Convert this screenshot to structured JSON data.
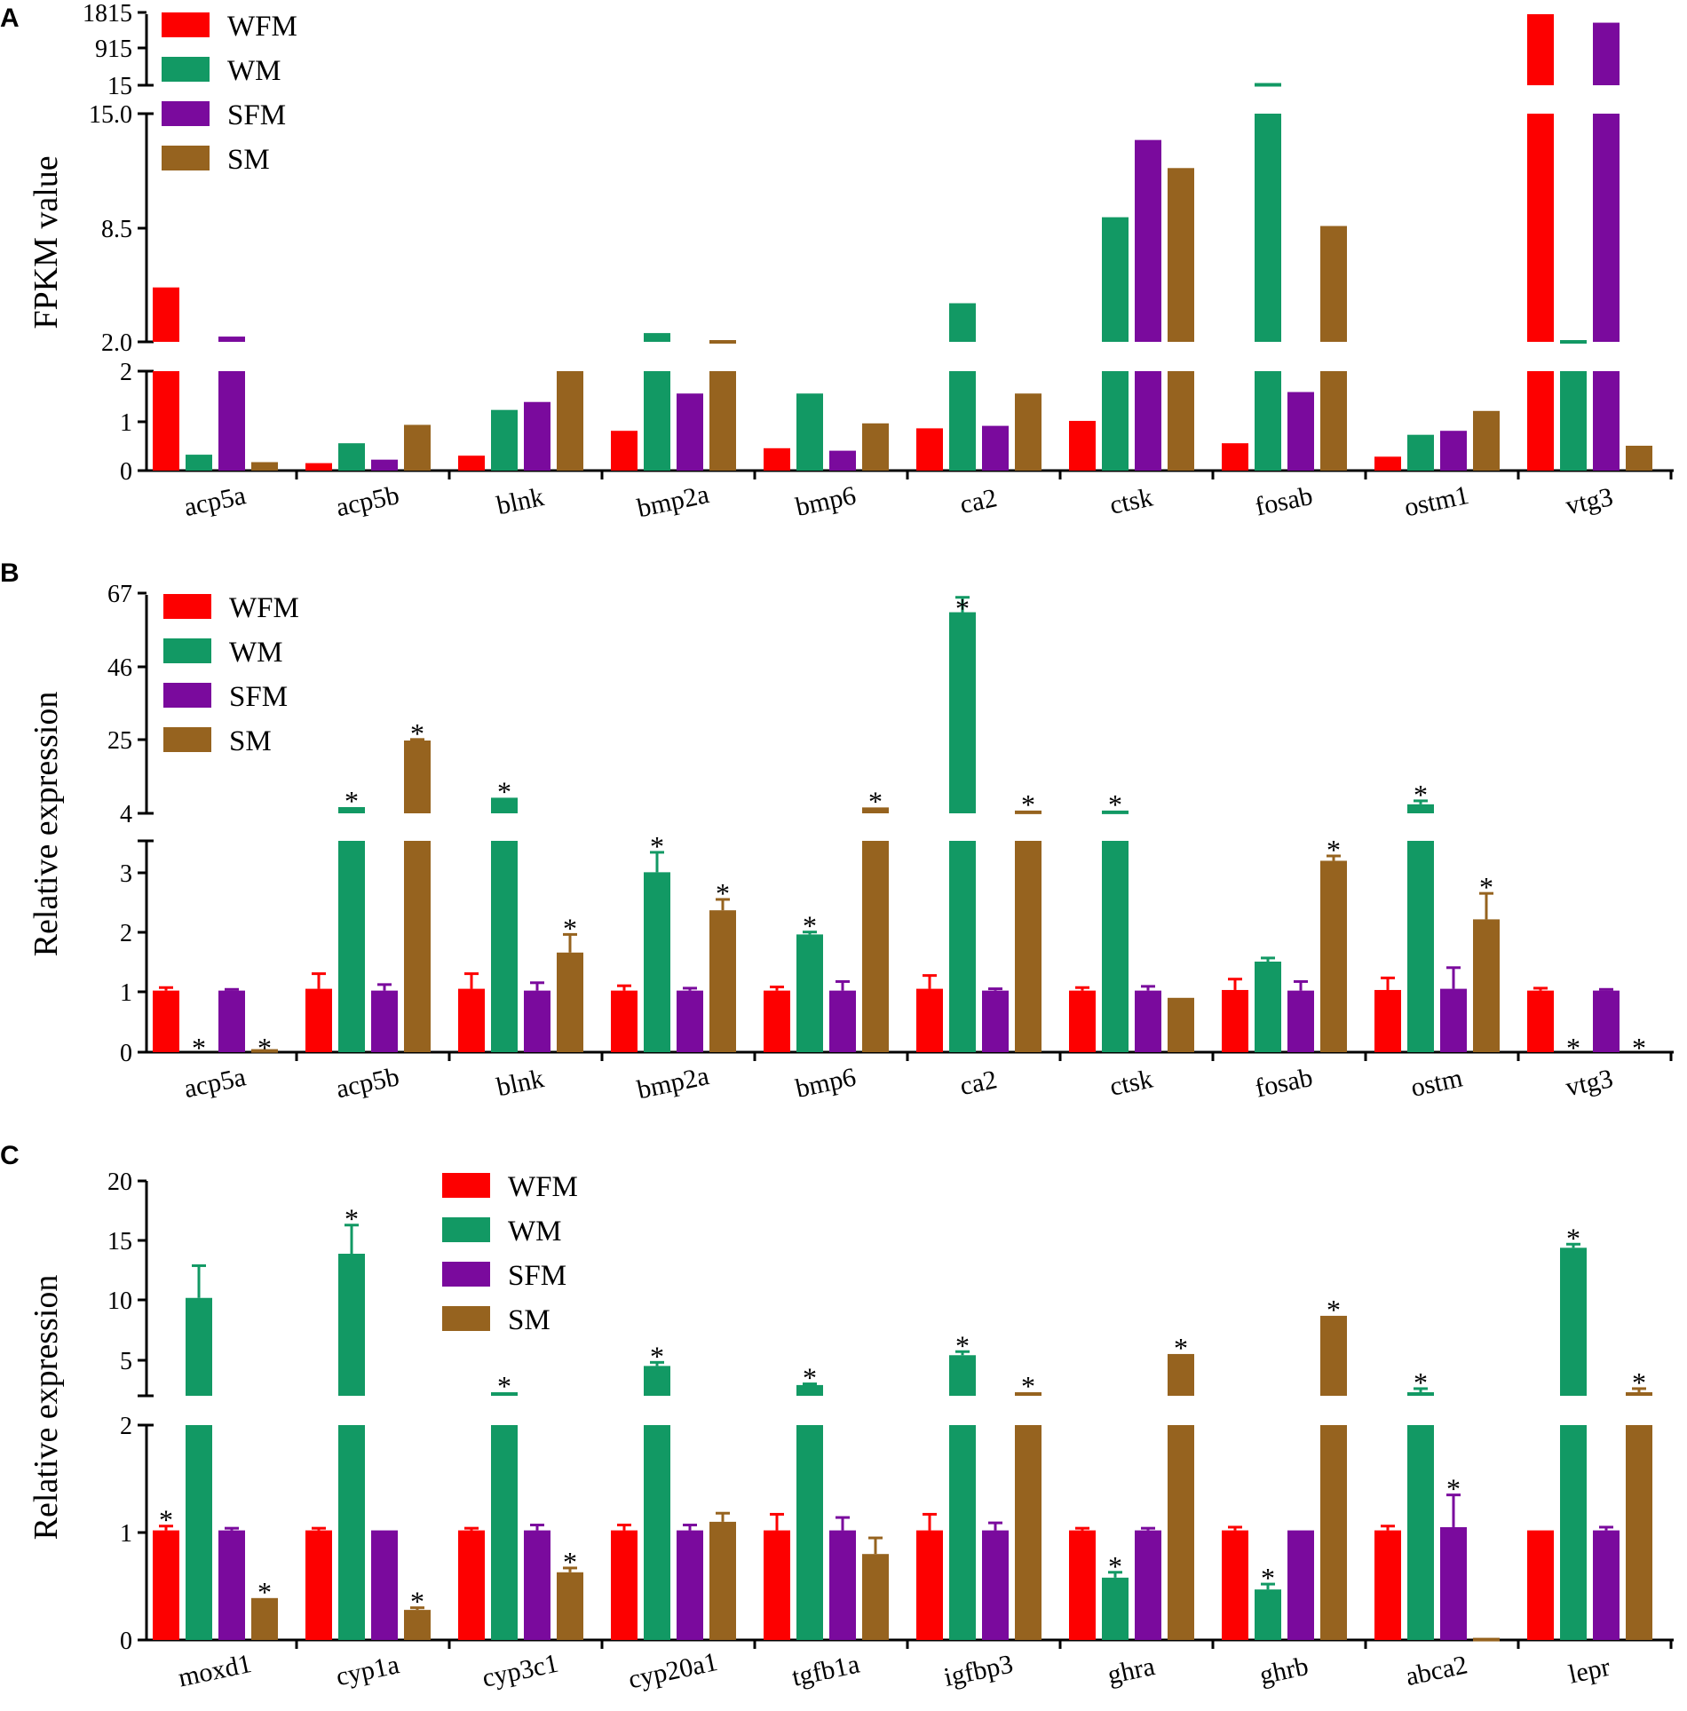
{
  "colors": {
    "WFM": "#fd0000",
    "WM": "#129964",
    "SFM": "#7a0a9d",
    "SM": "#96631f"
  },
  "chart_data": [
    {
      "type": "bar",
      "panel": "A",
      "ylabel": "FPKM value",
      "legend": [
        "WFM",
        "WM",
        "SFM",
        "SM"
      ],
      "categories": [
        "acp5a",
        "acp5b",
        "blnk",
        "bmp2a",
        "bmp6",
        "ca2",
        "ctsk",
        "fosab",
        "ostm1",
        "vtg3"
      ],
      "axis_breaks": [
        [
          0,
          2
        ],
        [
          2,
          15
        ],
        [
          15,
          1815
        ]
      ],
      "ticks": [
        [
          "0",
          "1",
          "2"
        ],
        [
          "2.0",
          "8.5",
          "15.0"
        ],
        [
          "15",
          "915",
          "1815"
        ]
      ],
      "series": [
        {
          "name": "WFM",
          "values": [
            5.1,
            0.15,
            0.3,
            0.8,
            0.45,
            0.85,
            1.0,
            0.55,
            0.28,
            1815
          ]
        },
        {
          "name": "WM",
          "values": [
            0.32,
            0.55,
            1.22,
            2.5,
            1.55,
            4.2,
            9.1,
            71,
            0.72,
            2.1
          ]
        },
        {
          "name": "SFM",
          "values": [
            2.3,
            0.22,
            1.38,
            1.55,
            0.4,
            0.9,
            13.5,
            1.58,
            0.8,
            1600
          ]
        },
        {
          "name": "SM",
          "values": [
            0.17,
            0.92,
            2.0,
            2.1,
            0.95,
            1.55,
            11.9,
            8.6,
            1.2,
            0.5
          ]
        }
      ],
      "significant": []
    },
    {
      "type": "bar",
      "panel": "B",
      "ylabel": "Relative expression",
      "legend": [
        "WFM",
        "WM",
        "SFM",
        "SM"
      ],
      "categories": [
        "acp5a",
        "acp5b",
        "blnk",
        "bmp2a",
        "bmp6",
        "ca2",
        "ctsk",
        "fosab",
        "ostm",
        "vtg3"
      ],
      "axis_breaks": [
        [
          0,
          3.5
        ],
        [
          4,
          67
        ]
      ],
      "ticks": [
        [
          "0",
          "1",
          "2",
          "3"
        ],
        [
          "4",
          "25",
          "46",
          "67"
        ]
      ],
      "series": [
        {
          "name": "WFM",
          "values": [
            1.02,
            1.05,
            1.05,
            1.02,
            1.02,
            1.05,
            1.02,
            1.03,
            1.03,
            1.02
          ],
          "errors": [
            0.05,
            0.25,
            0.25,
            0.08,
            0.06,
            0.22,
            0.05,
            0.18,
            0.2,
            0.04
          ]
        },
        {
          "name": "WM",
          "values": [
            0,
            5.8,
            8.5,
            2.98,
            1.95,
            62,
            4.8,
            1.5,
            6.6,
            0
          ],
          "errors": [
            0,
            0,
            0,
            0.33,
            0.04,
            4.3,
            0,
            0.06,
            1.0,
            0
          ]
        },
        {
          "name": "SFM",
          "values": [
            1.02,
            1.02,
            1.02,
            1.02,
            1.02,
            1.02,
            1.02,
            1.02,
            1.05,
            1.02
          ],
          "errors": [
            0.02,
            0.1,
            0.13,
            0.04,
            0.15,
            0.03,
            0.07,
            0.15,
            0.35,
            0.02
          ]
        },
        {
          "name": "SM",
          "values": [
            0.05,
            25.0,
            1.65,
            2.35,
            5.7,
            4.8,
            0.9,
            3.17,
            2.2,
            0
          ],
          "errors": [
            0,
            0.3,
            0.3,
            0.18,
            0,
            0,
            0,
            0.08,
            0.43,
            0
          ]
        }
      ],
      "significant": [
        [
          0,
          1
        ],
        [
          0,
          3
        ],
        [
          1,
          1
        ],
        [
          1,
          3
        ],
        [
          2,
          1
        ],
        [
          2,
          3
        ],
        [
          3,
          1
        ],
        [
          3,
          3
        ],
        [
          4,
          1
        ],
        [
          4,
          3
        ],
        [
          5,
          1
        ],
        [
          5,
          3
        ],
        [
          6,
          1
        ],
        [
          7,
          3
        ],
        [
          8,
          1
        ],
        [
          8,
          3
        ],
        [
          9,
          1
        ],
        [
          9,
          3
        ]
      ]
    },
    {
      "type": "bar",
      "panel": "C",
      "ylabel": "Relative expression",
      "legend": [
        "WFM",
        "WM",
        "SFM",
        "SM"
      ],
      "categories": [
        "moxd1",
        "cyp1a",
        "cyp3c1",
        "cyp20a1",
        "tgfb1a",
        "igfbp3",
        "ghra",
        "ghrb",
        "abca2",
        "lepr"
      ],
      "axis_breaks": [
        [
          0,
          2
        ],
        [
          2,
          20
        ]
      ],
      "ticks": [
        [
          "0",
          "1",
          "2"
        ],
        [
          "5",
          "10",
          "15",
          "20"
        ]
      ],
      "series": [
        {
          "name": "WFM",
          "values": [
            1.02,
            1.02,
            1.02,
            1.02,
            1.02,
            1.02,
            1.02,
            1.02,
            1.02,
            1.02
          ],
          "errors": [
            0.04,
            0.02,
            0.02,
            0.05,
            0.15,
            0.15,
            0.02,
            0.03,
            0.04,
            0
          ]
        },
        {
          "name": "WM",
          "values": [
            10.2,
            13.9,
            2.3,
            4.5,
            2.9,
            5.4,
            0.58,
            0.47,
            2.3,
            14.4
          ],
          "errors": [
            2.7,
            2.4,
            0,
            0.3,
            0.1,
            0.3,
            0.05,
            0.05,
            0.3,
            0.3
          ]
        },
        {
          "name": "SFM",
          "values": [
            1.02,
            1.02,
            1.02,
            1.02,
            1.02,
            1.02,
            1.02,
            1.02,
            1.05,
            1.02
          ],
          "errors": [
            0.02,
            0,
            0.05,
            0.05,
            0.12,
            0.07,
            0.02,
            0,
            0.3,
            0.03
          ]
        },
        {
          "name": "SM",
          "values": [
            0.39,
            0.28,
            0.63,
            1.1,
            0.8,
            2.3,
            5.5,
            8.7,
            0.02,
            2.3
          ],
          "errors": [
            0,
            0.02,
            0.04,
            0.08,
            0.15,
            0,
            0,
            0,
            0,
            0.3
          ]
        }
      ],
      "significant": [
        [
          0,
          0
        ],
        [
          0,
          3
        ],
        [
          1,
          1
        ],
        [
          1,
          3
        ],
        [
          2,
          1
        ],
        [
          2,
          3
        ],
        [
          3,
          1
        ],
        [
          4,
          1
        ],
        [
          5,
          1
        ],
        [
          5,
          3
        ],
        [
          6,
          1
        ],
        [
          6,
          3
        ],
        [
          7,
          1
        ],
        [
          7,
          3
        ],
        [
          8,
          1
        ],
        [
          8,
          2
        ],
        [
          9,
          1
        ],
        [
          9,
          3
        ]
      ]
    }
  ]
}
